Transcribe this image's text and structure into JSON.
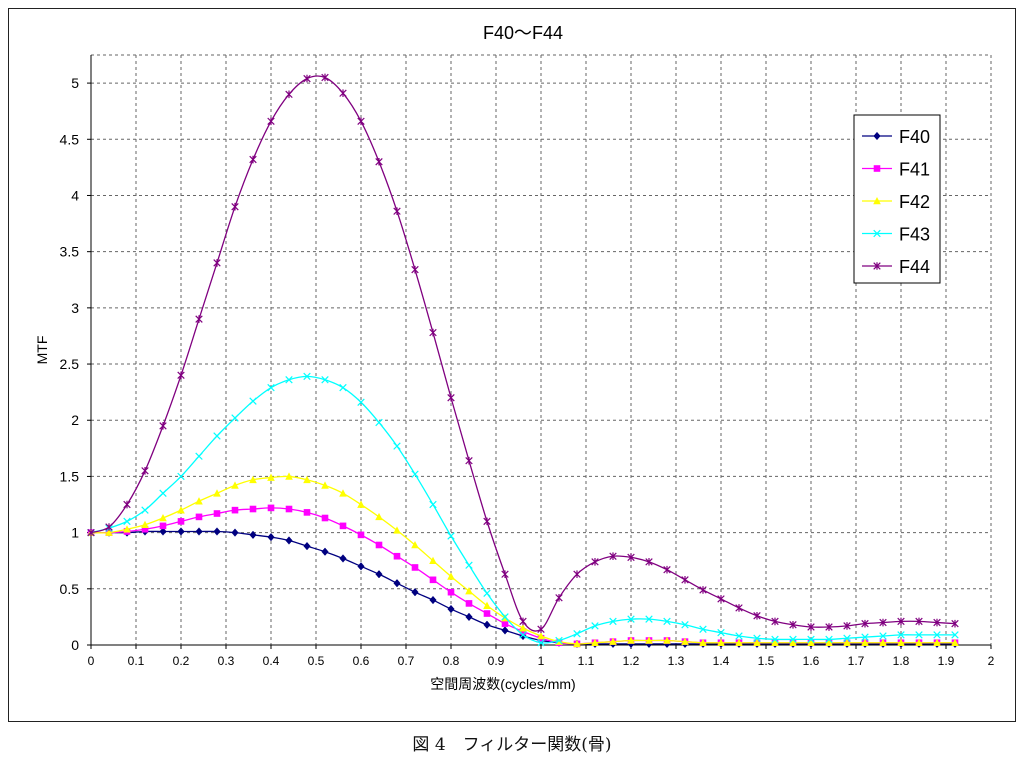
{
  "caption": "図 4　フィルター関数(骨)",
  "chart_data": {
    "type": "line",
    "title": "F40〜F44",
    "xlabel": "空間周波数(cycles/mm)",
    "ylabel": "MTF",
    "xlim": [
      0,
      2
    ],
    "ylim": [
      0,
      5.25
    ],
    "xticks": [
      "0",
      "0.1",
      "0.2",
      "0.3",
      "0.4",
      "0.5",
      "0.6",
      "0.7",
      "0.8",
      "0.9",
      "1",
      "1.1",
      "1.2",
      "1.3",
      "1.4",
      "1.5",
      "1.6",
      "1.7",
      "1.8",
      "1.9",
      "2"
    ],
    "yticks": [
      "0",
      "0.5",
      "1",
      "1.5",
      "2",
      "2.5",
      "3",
      "3.5",
      "4",
      "4.5",
      "5"
    ],
    "grid": true,
    "legend_position": "right",
    "x": [
      0,
      0.04,
      0.08,
      0.12,
      0.16,
      0.2,
      0.24,
      0.28,
      0.32,
      0.36,
      0.4,
      0.44,
      0.48,
      0.52,
      0.56,
      0.6,
      0.64,
      0.68,
      0.72,
      0.76,
      0.8,
      0.84,
      0.88,
      0.92,
      0.96,
      1.0,
      1.04,
      1.08,
      1.12,
      1.16,
      1.2,
      1.24,
      1.28,
      1.32,
      1.36,
      1.4,
      1.44,
      1.48,
      1.52,
      1.56,
      1.6,
      1.64,
      1.68,
      1.72,
      1.76,
      1.8,
      1.84,
      1.88,
      1.92
    ],
    "series": [
      {
        "name": "F40",
        "color": "#000080",
        "marker": "diamond",
        "values": [
          1.0,
          1.0,
          1.0,
          1.01,
          1.01,
          1.01,
          1.01,
          1.01,
          1.0,
          0.98,
          0.96,
          0.93,
          0.88,
          0.83,
          0.77,
          0.7,
          0.63,
          0.55,
          0.47,
          0.4,
          0.32,
          0.25,
          0.18,
          0.13,
          0.08,
          0.04,
          0.02,
          0.01,
          0.01,
          0.01,
          0.01,
          0.01,
          0.01,
          0.01,
          0.01,
          0.01,
          0.01,
          0.01,
          0.01,
          0.01,
          0.01,
          0.01,
          0.01,
          0.01,
          0.01,
          0.01,
          0.01,
          0.01,
          0.01
        ]
      },
      {
        "name": "F41",
        "color": "#ff00ff",
        "marker": "square",
        "values": [
          1.0,
          1.0,
          1.01,
          1.03,
          1.06,
          1.1,
          1.14,
          1.17,
          1.2,
          1.21,
          1.22,
          1.21,
          1.18,
          1.13,
          1.06,
          0.98,
          0.89,
          0.79,
          0.69,
          0.58,
          0.47,
          0.37,
          0.28,
          0.19,
          0.12,
          0.06,
          0.02,
          0.01,
          0.02,
          0.03,
          0.04,
          0.04,
          0.04,
          0.03,
          0.02,
          0.02,
          0.02,
          0.02,
          0.02,
          0.02,
          0.02,
          0.02,
          0.02,
          0.02,
          0.02,
          0.02,
          0.02,
          0.02,
          0.02
        ]
      },
      {
        "name": "F42",
        "color": "#ffff00",
        "marker": "triangle",
        "values": [
          1.0,
          1.0,
          1.03,
          1.07,
          1.13,
          1.2,
          1.28,
          1.35,
          1.42,
          1.47,
          1.49,
          1.5,
          1.47,
          1.42,
          1.35,
          1.25,
          1.14,
          1.02,
          0.89,
          0.75,
          0.61,
          0.48,
          0.35,
          0.24,
          0.15,
          0.08,
          0.03,
          0.01,
          0.02,
          0.03,
          0.04,
          0.04,
          0.04,
          0.03,
          0.02,
          0.02,
          0.02,
          0.02,
          0.02,
          0.02,
          0.02,
          0.02,
          0.02,
          0.02,
          0.02,
          0.02,
          0.02,
          0.02,
          0.02
        ]
      },
      {
        "name": "F43",
        "color": "#00ffff",
        "marker": "x",
        "values": [
          1.0,
          1.04,
          1.1,
          1.2,
          1.35,
          1.5,
          1.68,
          1.86,
          2.02,
          2.17,
          2.29,
          2.36,
          2.39,
          2.36,
          2.29,
          2.16,
          1.98,
          1.77,
          1.52,
          1.25,
          0.97,
          0.71,
          0.46,
          0.25,
          0.09,
          0.02,
          0.04,
          0.1,
          0.17,
          0.21,
          0.23,
          0.23,
          0.21,
          0.18,
          0.14,
          0.11,
          0.08,
          0.06,
          0.05,
          0.05,
          0.05,
          0.05,
          0.06,
          0.07,
          0.08,
          0.09,
          0.09,
          0.09,
          0.09
        ]
      },
      {
        "name": "F44",
        "color": "#800080",
        "marker": "star",
        "values": [
          1.0,
          1.05,
          1.25,
          1.55,
          1.95,
          2.4,
          2.9,
          3.4,
          3.9,
          4.32,
          4.66,
          4.9,
          5.04,
          5.05,
          4.91,
          4.66,
          4.3,
          3.86,
          3.34,
          2.78,
          2.2,
          1.64,
          1.1,
          0.63,
          0.21,
          0.14,
          0.42,
          0.63,
          0.74,
          0.79,
          0.78,
          0.74,
          0.67,
          0.58,
          0.49,
          0.41,
          0.33,
          0.26,
          0.21,
          0.18,
          0.16,
          0.16,
          0.17,
          0.19,
          0.2,
          0.21,
          0.21,
          0.2,
          0.19
        ]
      }
    ]
  }
}
